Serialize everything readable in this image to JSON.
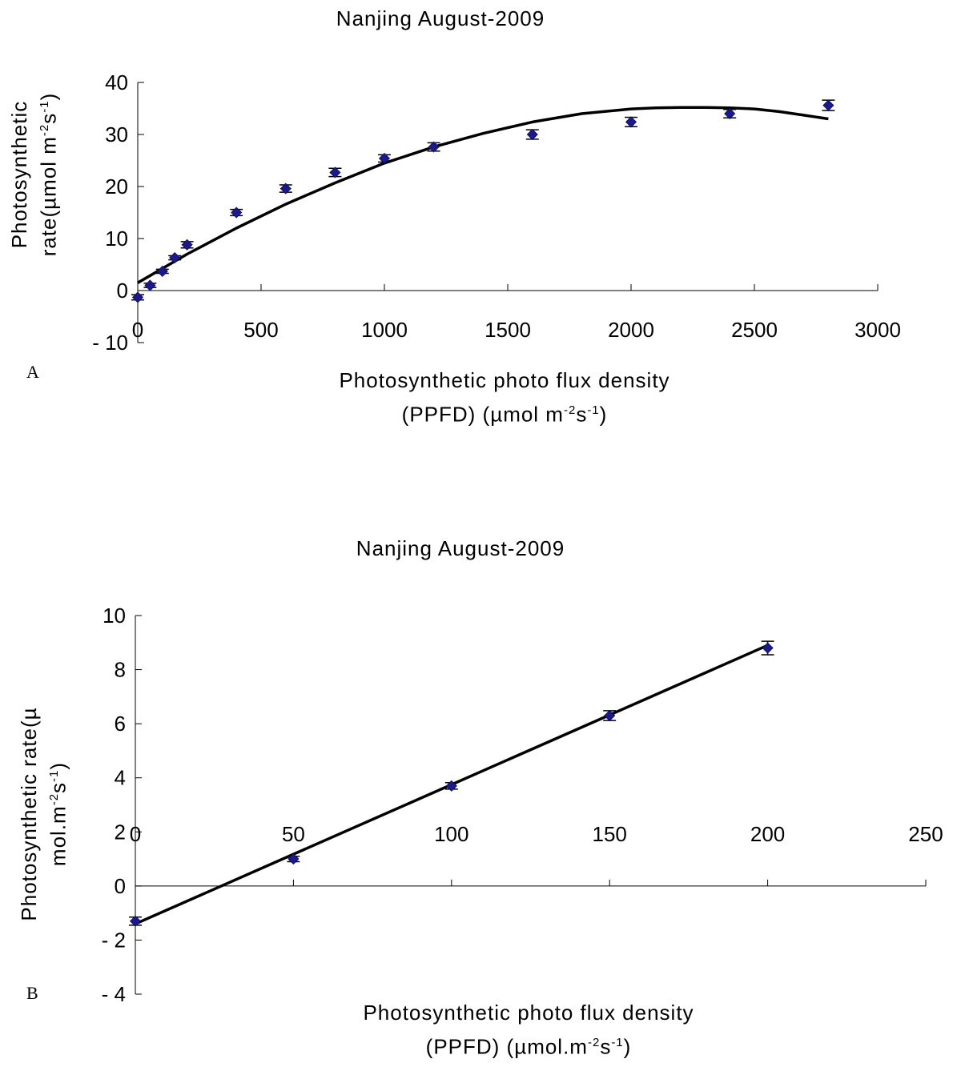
{
  "chart_data": [
    {
      "type": "scatter",
      "panel_letter": "A",
      "title": "Nanjing August-2009",
      "xlabel_line1": "Photosynthetic photo flux density",
      "xlabel_line2_pre": "(PPFD) (µmol m",
      "xlabel_exp1": "-2",
      "xlabel_mid": "s",
      "xlabel_exp2": "-1",
      "xlabel_post": ")",
      "ylabel_line1": "Photosynthetic",
      "ylabel_line2_pre": "rate(µmol m",
      "ylabel_exp1": "-2",
      "ylabel_mid": "s",
      "ylabel_exp2": "-1",
      "ylabel_post": ")",
      "xlim": [
        0,
        3000
      ],
      "ylim": [
        -10,
        40
      ],
      "xticks": [
        0,
        500,
        1000,
        1500,
        2000,
        2500,
        3000
      ],
      "yticks": [
        -10,
        0,
        10,
        20,
        30,
        40
      ],
      "marker_color": "#1a1a8c",
      "points": [
        {
          "x": 0,
          "y": -1.3,
          "err": 0.5
        },
        {
          "x": 50,
          "y": 1.0,
          "err": 0.4
        },
        {
          "x": 100,
          "y": 3.7,
          "err": 0.4
        },
        {
          "x": 150,
          "y": 6.3,
          "err": 0.4
        },
        {
          "x": 200,
          "y": 8.8,
          "err": 0.6
        },
        {
          "x": 400,
          "y": 15.0,
          "err": 0.6
        },
        {
          "x": 600,
          "y": 19.6,
          "err": 0.7
        },
        {
          "x": 800,
          "y": 22.7,
          "err": 0.8
        },
        {
          "x": 1000,
          "y": 25.4,
          "err": 0.7
        },
        {
          "x": 1200,
          "y": 27.6,
          "err": 0.8
        },
        {
          "x": 1600,
          "y": 30.0,
          "err": 0.9
        },
        {
          "x": 2000,
          "y": 32.4,
          "err": 0.9
        },
        {
          "x": 2400,
          "y": 34.0,
          "err": 0.8
        },
        {
          "x": 2800,
          "y": 35.6,
          "err": 1.0
        }
      ],
      "fit_curve": {
        "x": [
          0,
          200,
          400,
          600,
          800,
          1000,
          1200,
          1400,
          1600,
          1800,
          2000,
          2100,
          2200,
          2300,
          2400,
          2500,
          2600,
          2700,
          2800
        ],
        "y": [
          1.5,
          7.0,
          12.0,
          16.6,
          20.7,
          24.5,
          27.6,
          30.2,
          32.4,
          34.0,
          34.9,
          35.1,
          35.2,
          35.2,
          35.1,
          34.9,
          34.4,
          33.7,
          33.0
        ]
      }
    },
    {
      "type": "scatter",
      "panel_letter": "B",
      "title": "Nanjing August-2009",
      "xlabel_line1": "Photosynthetic photo flux density",
      "xlabel_line2_pre": "(PPFD) (µmol.m",
      "xlabel_exp1": "-2",
      "xlabel_mid": "s",
      "xlabel_exp2": "-1",
      "xlabel_post": ")",
      "ylabel_line1": "Photosynthetic rate(µ",
      "ylabel_line2_pre": "mol.m",
      "ylabel_exp1": "-2",
      "ylabel_mid": "s",
      "ylabel_exp2": "-1",
      "ylabel_post": ")",
      "xlim": [
        0,
        250
      ],
      "ylim": [
        -4,
        10
      ],
      "xticks": [
        0,
        50,
        100,
        150,
        200,
        250
      ],
      "yticks": [
        -4,
        -2,
        0,
        2,
        4,
        6,
        8,
        10
      ],
      "marker_color": "#1a1a8c",
      "points": [
        {
          "x": 0,
          "y": -1.3,
          "err": 0.15
        },
        {
          "x": 50,
          "y": 1.0,
          "err": 0.1
        },
        {
          "x": 100,
          "y": 3.7,
          "err": 0.12
        },
        {
          "x": 150,
          "y": 6.3,
          "err": 0.18
        },
        {
          "x": 200,
          "y": 8.8,
          "err": 0.25
        }
      ],
      "fit_line": {
        "x": [
          0,
          200
        ],
        "y": [
          -1.4,
          8.9
        ]
      }
    }
  ]
}
